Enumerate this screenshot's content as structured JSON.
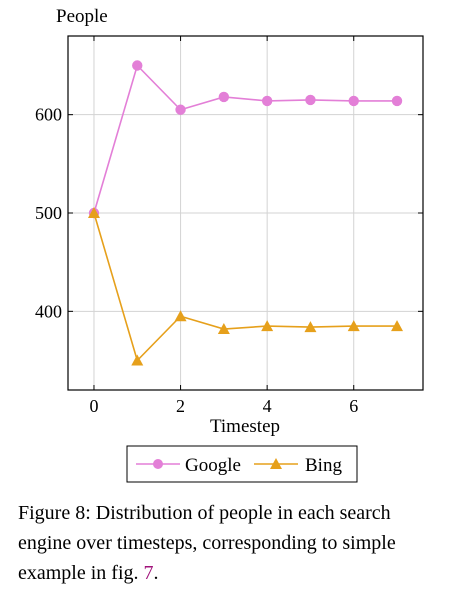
{
  "chart_data": {
    "type": "line",
    "ylabel": "People",
    "xlabel": "Timestep",
    "xlim": [
      -0.6,
      7.6
    ],
    "ylim": [
      320,
      680
    ],
    "x_ticks": [
      0,
      2,
      4,
      6
    ],
    "y_ticks": [
      400,
      500,
      600
    ],
    "grid": true,
    "legend_placement": "bottom-center",
    "series": [
      {
        "name": "Google",
        "color": "#e37fd7",
        "marker": "circle",
        "x": [
          0,
          1,
          2,
          3,
          4,
          5,
          6,
          7
        ],
        "values": [
          500,
          650,
          605,
          618,
          614,
          615,
          614,
          614
        ]
      },
      {
        "name": "Bing",
        "color": "#e6a01b",
        "marker": "triangle",
        "x": [
          0,
          1,
          2,
          3,
          4,
          5,
          6,
          7
        ],
        "values": [
          500,
          350,
          395,
          382,
          385,
          384,
          385,
          385
        ]
      }
    ]
  },
  "caption": {
    "text": "Figure 8: Distribution of people in each search engine over timesteps, corresponding to simple example in fig. ",
    "ref": "7",
    "end": "."
  }
}
